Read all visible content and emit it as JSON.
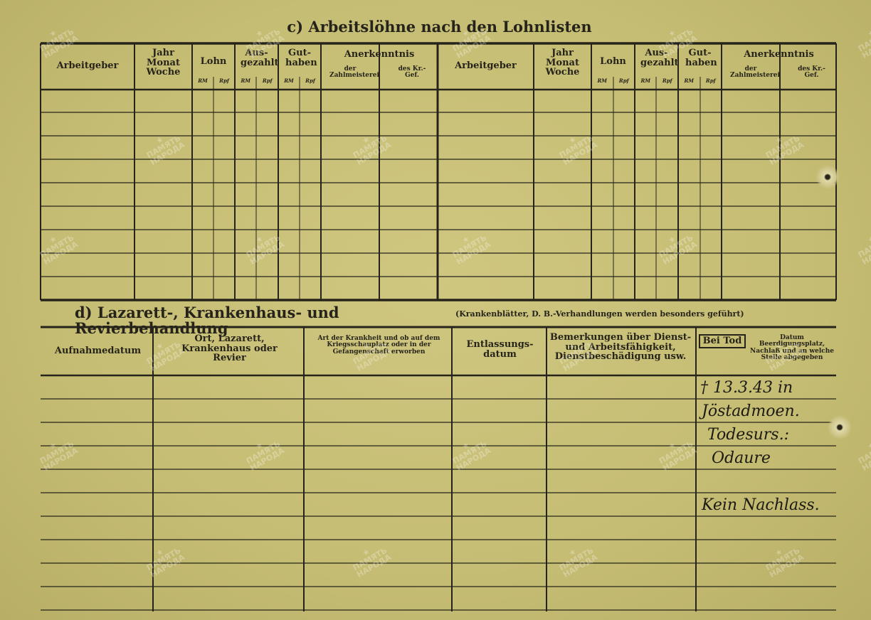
{
  "watermark": "ПАМЯТЬ НАРОДА",
  "section_c": {
    "title": "c) Arbeitslöhne nach den Lohnlisten",
    "columns": {
      "arbeitgeber": "Arbeitgeber",
      "zeit": "Jahr Monat Woche",
      "lohn": "Lohn",
      "ausgezahlt": "Aus-gezahlt",
      "guthaben": "Gut-haben",
      "anerkenntnis": "Anerkenntnis",
      "zahlmeisterei": "der Zahlmeisterei",
      "krges": "des Kr.-Gef.",
      "rm": "RM",
      "rpf": "Rpf"
    }
  },
  "section_d": {
    "title": "d) Lazarett-, Krankenhaus- und Revierbehandlung",
    "subtitle": "(Krankenblätter, D. B.-Verhandlungen werden besonders geführt)",
    "columns": {
      "aufnahme": "Aufnahmedatum",
      "ort": "Ort, Lazarett, Krankenhaus oder Revier",
      "krankheit": "Art der Krankheit und ob auf dem Kriegsschauplatz oder in der Gefangenschaft erworben",
      "entlassung": "Entlassungs-datum",
      "bemerkungen": "Bemerkungen über Dienst- und Arbeitsfähigkeit, Dienstbeschädigung usw.",
      "bei_tod": "Bei Tod",
      "tod_detail": "Datum Beerdigungsplatz, Nachlaß und an welche Stelle abgegeben"
    },
    "handwritten": [
      "† 13.3.43 in",
      "Jöstadmoen.",
      "Todesurs.:",
      "Odaure",
      "Kein Nachlass."
    ]
  },
  "colors": {
    "paper": "#c8bf78",
    "ink": "#26241a"
  }
}
